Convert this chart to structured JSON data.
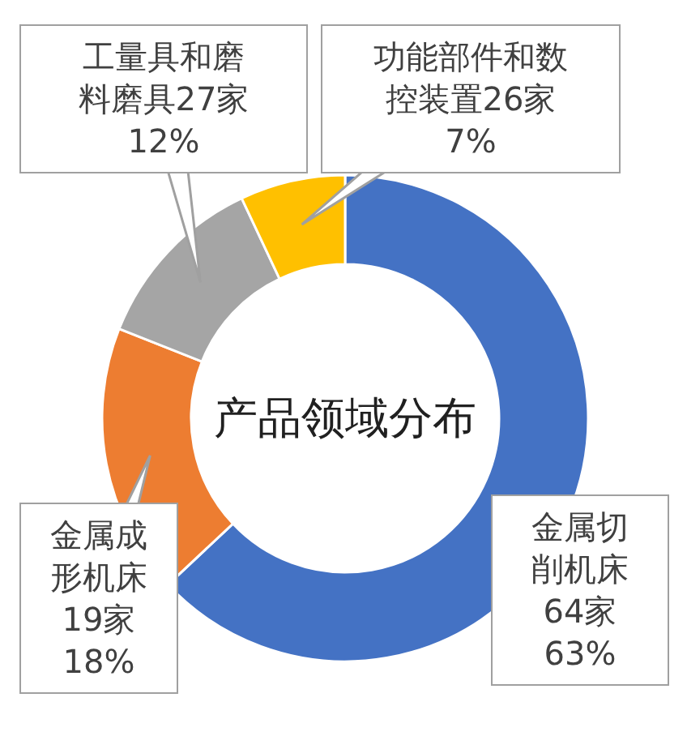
{
  "chart_data": {
    "type": "donut",
    "title": "产品领域分布",
    "categories": [
      "金属切削机床64家",
      "金属成形机床19家",
      "工量具和磨料磨具27家",
      "功能部件和数控装置26家"
    ],
    "values": [
      63,
      18,
      12,
      7
    ],
    "colors": [
      "#4472c4",
      "#ed7d31",
      "#a5a5a5",
      "#ffc000"
    ],
    "value_labels": [
      "63%",
      "18%",
      "12%",
      "7%"
    ]
  }
}
